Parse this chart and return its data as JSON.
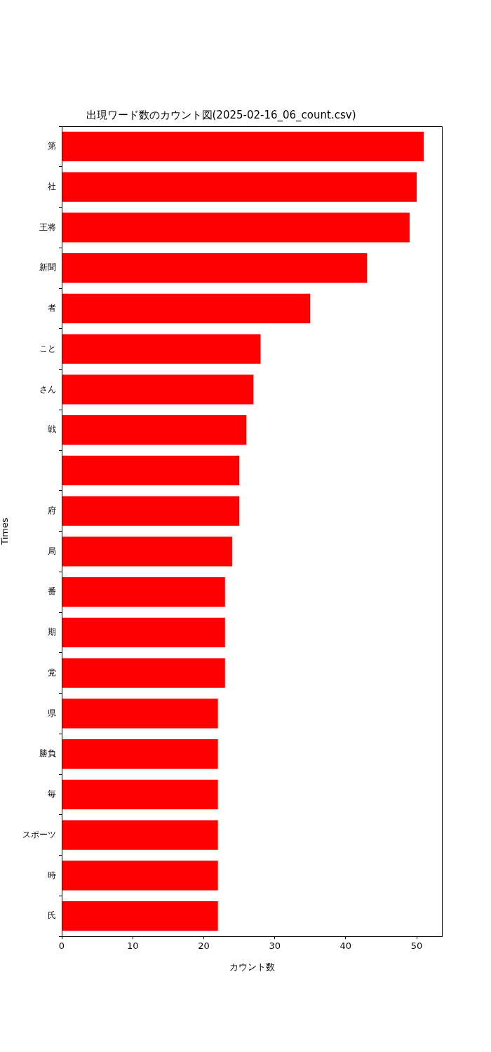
{
  "chart_data": {
    "type": "bar",
    "orientation": "horizontal",
    "title": "出現ワード数のカウント図(2025-02-16_06_count.csv)",
    "xlabel": "カウント数",
    "ylabel": "Times",
    "categories": [
      "第",
      "社",
      "王将",
      "新聞",
      "者",
      "こと",
      "さん",
      "戦",
      null,
      "府",
      "局",
      "番",
      "期",
      "党",
      "県",
      "勝負",
      "毎",
      "スポーツ",
      "時",
      "氏"
    ],
    "values": [
      51,
      50,
      49,
      43,
      35,
      28,
      27,
      26,
      25,
      25,
      24,
      23,
      23,
      23,
      22,
      22,
      22,
      22,
      22,
      22
    ],
    "color": "#ff0000",
    "xlim": [
      0,
      53.55
    ],
    "xticks": [
      0,
      10,
      20,
      30,
      40,
      50
    ]
  }
}
